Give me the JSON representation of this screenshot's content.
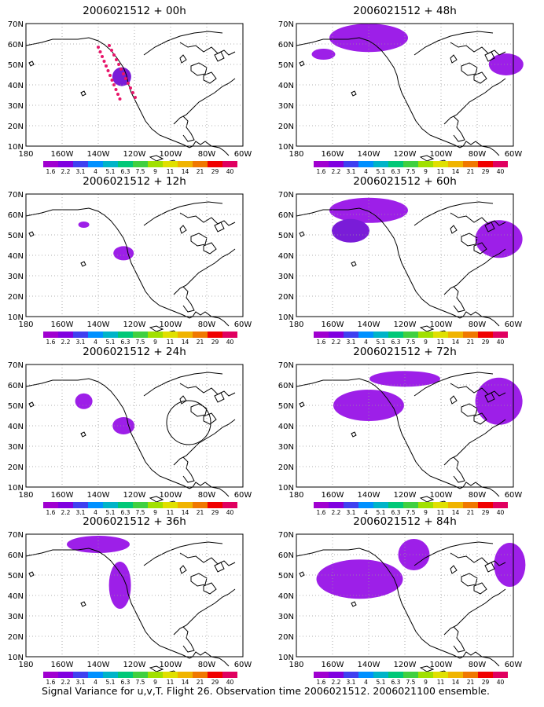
{
  "figure": {
    "caption": "Signal Variance for u,v,T. Flight 26. Observation time 2006021512. 2006021100 ensemble."
  },
  "axes": {
    "lat_labels": [
      "70N",
      "60N",
      "50N",
      "40N",
      "30N",
      "20N",
      "10N"
    ],
    "lon_labels": [
      "180",
      "160W",
      "140W",
      "120W",
      "100W",
      "80W",
      "60W"
    ]
  },
  "colorbar": {
    "labels": [
      "1.6",
      "2.2",
      "3.1",
      "4",
      "5.1",
      "6.3",
      "7.5",
      "9",
      "11",
      "14",
      "21",
      "29",
      "40"
    ],
    "colors": [
      "#a000d0",
      "#8000e0",
      "#4040f0",
      "#0090ff",
      "#00b4c8",
      "#00c878",
      "#40d040",
      "#a0e000",
      "#e0e000",
      "#f0b400",
      "#f07800",
      "#f00000",
      "#e00060"
    ]
  },
  "colors": {
    "shading_light": "#9d1fe8",
    "shading_mid": "#7a1cd8",
    "shading_blue": "#3b5cf0",
    "contour_dot": "#e8156a"
  },
  "chart_data": [
    {
      "type": "heatmap",
      "title": "2006021512 + 00h",
      "xlabel": "",
      "ylabel": "",
      "xlim": [
        -180,
        -60
      ],
      "ylim": [
        10,
        70
      ],
      "values": [
        {
          "lon": -127,
          "lat": 44,
          "level": "1.6-2.2"
        }
      ],
      "annotations": [
        "dotted contour outline over Gulf of Alaska"
      ]
    },
    {
      "type": "heatmap",
      "title": "2006021512 + 48h",
      "xlabel": "",
      "ylabel": "",
      "xlim": [
        -180,
        -60
      ],
      "ylim": [
        10,
        70
      ],
      "values": [
        {
          "lon": -140,
          "lat": 63,
          "level": "1.6-2.2"
        },
        {
          "lon": -165,
          "lat": 55,
          "level": "1.6"
        },
        {
          "lon": -64,
          "lat": 50,
          "level": "1.6"
        }
      ]
    },
    {
      "type": "heatmap",
      "title": "2006021512 + 12h",
      "xlabel": "",
      "ylabel": "",
      "xlim": [
        -180,
        -60
      ],
      "ylim": [
        10,
        70
      ],
      "values": [
        {
          "lon": -126,
          "lat": 41,
          "level": "1.6"
        },
        {
          "lon": -148,
          "lat": 55,
          "level": "1.6"
        }
      ]
    },
    {
      "type": "heatmap",
      "title": "2006021512 + 60h",
      "xlabel": "",
      "ylabel": "",
      "xlim": [
        -180,
        -60
      ],
      "ylim": [
        10,
        70
      ],
      "values": [
        {
          "lon": -140,
          "lat": 62,
          "level": "1.6"
        },
        {
          "lon": -150,
          "lat": 52,
          "level": "1.6-2.2"
        },
        {
          "lon": -68,
          "lat": 48,
          "level": "1.6-2.2"
        }
      ]
    },
    {
      "type": "heatmap",
      "title": "2006021512 + 24h",
      "xlabel": "",
      "ylabel": "",
      "xlim": [
        -180,
        -60
      ],
      "ylim": [
        10,
        70
      ],
      "values": [
        {
          "lon": -126,
          "lat": 40,
          "level": "1.6"
        },
        {
          "lon": -148,
          "lat": 52,
          "level": "1.6"
        }
      ],
      "annotations": [
        "closed contour circle over Great Lakes"
      ]
    },
    {
      "type": "heatmap",
      "title": "2006021512 + 72h",
      "xlabel": "",
      "ylabel": "",
      "xlim": [
        -180,
        -60
      ],
      "ylim": [
        10,
        70
      ],
      "values": [
        {
          "lon": -140,
          "lat": 50,
          "level": "1.6-2.2"
        },
        {
          "lon": -120,
          "lat": 63,
          "level": "1.6"
        },
        {
          "lon": -68,
          "lat": 52,
          "level": "1.6-2.2"
        }
      ]
    },
    {
      "type": "heatmap",
      "title": "2006021512 + 36h",
      "xlabel": "",
      "ylabel": "",
      "xlim": [
        -180,
        -60
      ],
      "ylim": [
        10,
        70
      ],
      "values": [
        {
          "lon": -140,
          "lat": 65,
          "level": "1.6"
        },
        {
          "lon": -128,
          "lat": 45,
          "level": "1.6"
        }
      ]
    },
    {
      "type": "heatmap",
      "title": "2006021512 + 84h",
      "xlabel": "",
      "ylabel": "",
      "xlim": [
        -180,
        -60
      ],
      "ylim": [
        10,
        70
      ],
      "values": [
        {
          "lon": -145,
          "lat": 48,
          "level": "1.6-3.1"
        },
        {
          "lon": -115,
          "lat": 60,
          "level": "1.6"
        },
        {
          "lon": -62,
          "lat": 55,
          "level": "1.6"
        }
      ]
    }
  ]
}
